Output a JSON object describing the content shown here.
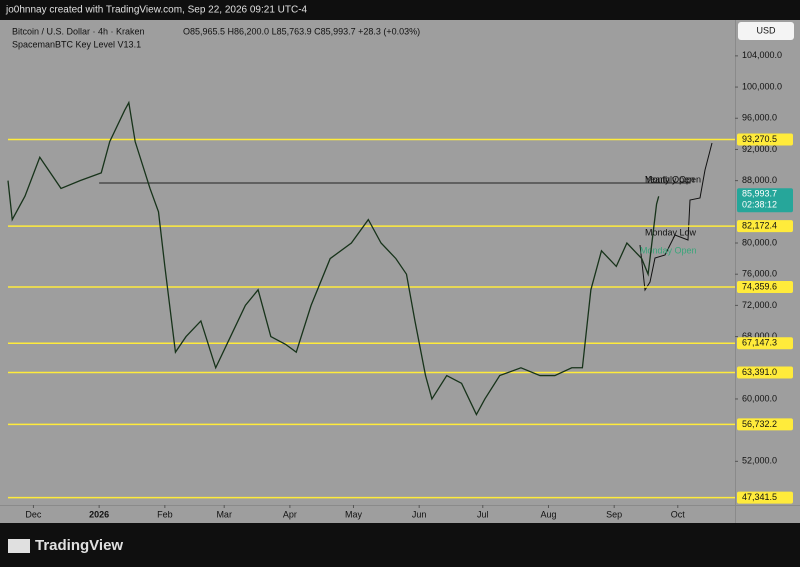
{
  "header": "jo0hnnay created with TradingView.com, Sep 22, 2026 09:21 UTC-4",
  "footer": "TradingView",
  "chart_data": {
    "type": "line",
    "title": "Bitcoin / U.S. Dollar · 4h · Kraken",
    "ohlc_text": "O85,965.5 H86,200.0 L85,763.9 C85,993.7 +28.3 (+0.03%)",
    "indicator": "SpacemanBTC Key Level V13.1",
    "currency": "USD",
    "x": [
      -12,
      -10,
      -4,
      3,
      13,
      22,
      32,
      36,
      43,
      45,
      48,
      55,
      59,
      62,
      67,
      72,
      79,
      86,
      93,
      100,
      106,
      112,
      119,
      124,
      131,
      140,
      150,
      158,
      164,
      171,
      176,
      180,
      185,
      188,
      195,
      202,
      209,
      213,
      220,
      230,
      239,
      246,
      254,
      259,
      263,
      268,
      275,
      280,
      287,
      290,
      294,
      295
    ],
    "values": [
      88000,
      83000,
      86000,
      91000,
      87000,
      88000,
      89000,
      93000,
      97000,
      98000,
      93000,
      87000,
      84000,
      77000,
      66000,
      68000,
      70000,
      64000,
      68000,
      72000,
      74000,
      68000,
      67000,
      66000,
      72000,
      78000,
      80000,
      83000,
      80000,
      78000,
      76000,
      70000,
      63000,
      60000,
      63000,
      62000,
      58000,
      60000,
      63000,
      64000,
      63000,
      63000,
      64000,
      64000,
      74000,
      79000,
      77000,
      80000,
      78000,
      76000,
      85000,
      85993.7
    ],
    "color": "#17331a",
    "xlim": [
      -12,
      331
    ],
    "ylim": [
      46400,
      108600
    ],
    "xticks": [
      {
        "value": 0,
        "label": "Dec"
      },
      {
        "value": 31,
        "label": "2026"
      },
      {
        "value": 62,
        "label": "Feb"
      },
      {
        "value": 90,
        "label": "Mar"
      },
      {
        "value": 121,
        "label": "Apr"
      },
      {
        "value": 151,
        "label": "May"
      },
      {
        "value": 182,
        "label": "Jun"
      },
      {
        "value": 212,
        "label": "Jul"
      },
      {
        "value": 243,
        "label": "Aug"
      },
      {
        "value": 274,
        "label": "Sep"
      },
      {
        "value": 304,
        "label": "Oct"
      }
    ],
    "yticks": [
      {
        "value": 104000,
        "label": "104,000.0"
      },
      {
        "value": 100000,
        "label": "100,000.0"
      },
      {
        "value": 96000,
        "label": "96,000.0"
      },
      {
        "value": 92000,
        "label": "92,000.0"
      },
      {
        "value": 88000,
        "label": "88,000.0"
      },
      {
        "value": 80000,
        "label": "80,000.0"
      },
      {
        "value": 76000,
        "label": "76,000.0"
      },
      {
        "value": 72000,
        "label": "72,000.0"
      },
      {
        "value": 68000,
        "label": "68,000.0"
      },
      {
        "value": 60000,
        "label": "60,000.0"
      },
      {
        "value": 52000,
        "label": "52,000.0"
      }
    ],
    "key_levels": {
      "values": [
        93270.5,
        82172.4,
        74359.6,
        67147.3,
        63391.0,
        56732.2,
        47341.5
      ],
      "value_labels": [
        "93,270.5",
        "82,172.4",
        "74,359.6",
        "67,147.3",
        "63,391.0",
        "56,732.2",
        "47,341.5"
      ],
      "color": "#ffeb3b"
    },
    "reference_lines": [
      {
        "name": "Yearly Open",
        "value": 87700
      }
    ],
    "annotations": [
      "Monthly Open",
      "Monday Low",
      "Monday Open"
    ],
    "last_price": {
      "value": 85993.7,
      "label": "85,993.7",
      "countdown": "02:38:12",
      "color": "#26a69a"
    }
  }
}
